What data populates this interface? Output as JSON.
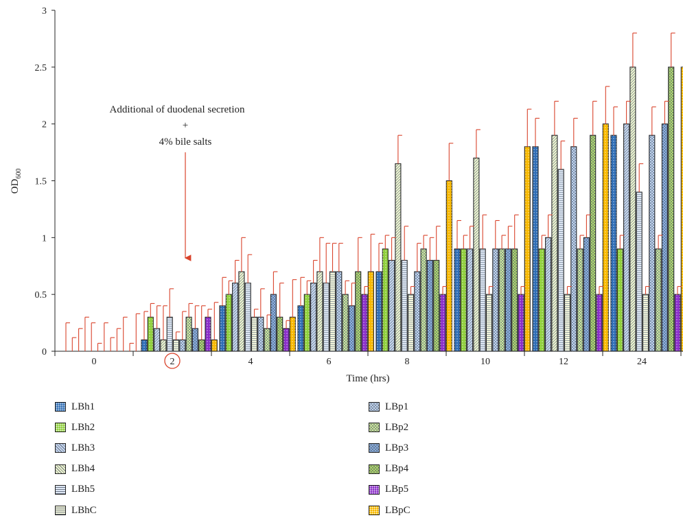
{
  "chart_data": {
    "type": "bar",
    "xlabel": "Time (hrs)",
    "ylabel": "OD",
    "ylabel_subscript": "600",
    "ylim": [
      0,
      3
    ],
    "yticks": [
      "0",
      "0.5",
      "1",
      "1.5",
      "2",
      "2.5",
      "3"
    ],
    "categories": [
      "0",
      "2",
      "4",
      "6",
      "8",
      "10",
      "12",
      "24"
    ],
    "highlighted_category": "2",
    "annotation": {
      "lines": [
        "Additional of duodenal secretion",
        "+",
        "4% bile salts"
      ],
      "target_category": "2"
    },
    "error_color": "#d9432b",
    "series": [
      {
        "name": "LBh1",
        "color": "#2f6db5",
        "pattern": "dots",
        "values": [
          0,
          0.1,
          0.4,
          0.4,
          0.7,
          0.9,
          1.8,
          1.9
        ],
        "errors": [
          0.25,
          0.25,
          0.25,
          0.25,
          0.25,
          0.25,
          0.25,
          0.25
        ]
      },
      {
        "name": "LBh2",
        "color": "#8fcf3c",
        "pattern": "dots",
        "values": [
          0,
          0.3,
          0.5,
          0.5,
          0.9,
          0.9,
          0.9,
          0.9
        ],
        "errors": [
          0.12,
          0.12,
          0.12,
          0.12,
          0.12,
          0.12,
          0.12,
          0.12
        ]
      },
      {
        "name": "LBh3",
        "color": "#c6d6ee",
        "pattern": "diag",
        "values": [
          0,
          0.2,
          0.6,
          0.6,
          0.8,
          0.9,
          1.0,
          2.0
        ],
        "errors": [
          0.2,
          0.2,
          0.2,
          0.2,
          0.2,
          0.2,
          0.2,
          0.2
        ]
      },
      {
        "name": "LBh4",
        "color": "#eef5d0",
        "pattern": "diag",
        "values": [
          0,
          0.1,
          0.7,
          0.7,
          1.65,
          1.7,
          1.9,
          2.5
        ],
        "errors": [
          0.3,
          0.3,
          0.3,
          0.3,
          0.25,
          0.25,
          0.3,
          0.3
        ]
      },
      {
        "name": "LBh5",
        "color": "#dfe8f5",
        "pattern": "hlines",
        "values": [
          0,
          0.3,
          0.6,
          0.6,
          0.8,
          0.9,
          1.6,
          1.4
        ],
        "errors": [
          0.25,
          0.25,
          0.25,
          0.35,
          0.3,
          0.3,
          0.25,
          0.25
        ]
      },
      {
        "name": "LBhC",
        "color": "#f3f6dc",
        "pattern": "hlines",
        "values": [
          0,
          0.1,
          0.3,
          0.7,
          0.5,
          0.5,
          0.5,
          0.5
        ],
        "errors": [
          0.07,
          0.07,
          0.07,
          0.25,
          0.07,
          0.07,
          0.07,
          0.07
        ]
      },
      {
        "name": "LBp1",
        "color": "#c4d8f0",
        "pattern": "cross",
        "values": [
          0,
          0.1,
          0.3,
          0.7,
          0.7,
          0.9,
          1.8,
          1.9
        ],
        "errors": [
          0.25,
          0.25,
          0.25,
          0.25,
          0.25,
          0.25,
          0.25,
          0.25
        ]
      },
      {
        "name": "LBp2",
        "color": "#d3eda0",
        "pattern": "cross",
        "values": [
          0,
          0.3,
          0.2,
          0.5,
          0.9,
          0.9,
          0.9,
          0.9
        ],
        "errors": [
          0.12,
          0.12,
          0.12,
          0.12,
          0.12,
          0.12,
          0.12,
          0.12
        ]
      },
      {
        "name": "LBp3",
        "color": "#8fb3e0",
        "pattern": "cross",
        "values": [
          0,
          0.2,
          0.5,
          0.4,
          0.8,
          0.9,
          1.0,
          2.0
        ],
        "errors": [
          0.2,
          0.2,
          0.2,
          0.2,
          0.2,
          0.2,
          0.2,
          0.2
        ]
      },
      {
        "name": "LBp4",
        "color": "#b5dc6e",
        "pattern": "cross",
        "values": [
          0,
          0.1,
          0.3,
          0.7,
          0.8,
          0.9,
          1.9,
          2.5
        ],
        "errors": [
          0.3,
          0.3,
          0.3,
          0.3,
          0.3,
          0.3,
          0.3,
          0.3
        ]
      },
      {
        "name": "LBp5",
        "color": "#8a2ec9",
        "pattern": "dots",
        "values": [
          0,
          0.3,
          0.2,
          0.5,
          0.5,
          0.5,
          0.5,
          0.5
        ],
        "errors": [
          0.07,
          0.07,
          0.07,
          0.07,
          0.07,
          0.07,
          0.07,
          0.07
        ]
      },
      {
        "name": "LBpC",
        "color": "#f7b800",
        "pattern": "dots",
        "values": [
          0,
          0.1,
          0.3,
          0.7,
          1.5,
          1.8,
          2.0,
          2.5
        ],
        "errors": [
          0.33,
          0.33,
          0.33,
          0.33,
          0.33,
          0.33,
          0.33,
          0.33
        ]
      }
    ],
    "legend_placement": "bottom, two columns",
    "grid": false
  }
}
